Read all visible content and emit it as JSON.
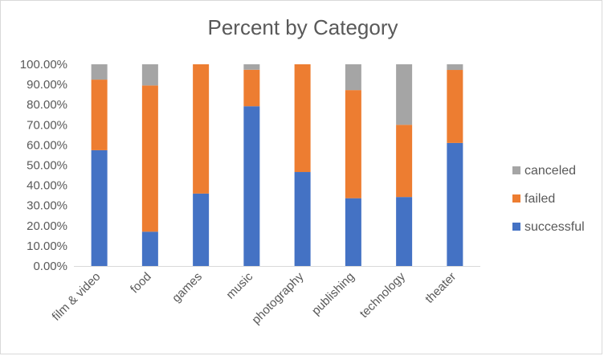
{
  "chart_data": {
    "type": "bar",
    "stacked": true,
    "title": "Percent by Category",
    "xlabel": "",
    "ylabel": "",
    "ylim": [
      0,
      100
    ],
    "y_ticks": [
      "0.00%",
      "10.00%",
      "20.00%",
      "30.00%",
      "40.00%",
      "50.00%",
      "60.00%",
      "70.00%",
      "80.00%",
      "90.00%",
      "100.00%"
    ],
    "categories": [
      "film & video",
      "food",
      "games",
      "music",
      "photography",
      "publishing",
      "technology",
      "theater"
    ],
    "series": [
      {
        "name": "successful",
        "color": "#4472c4",
        "values": [
          57.4,
          17.0,
          35.9,
          79.2,
          46.6,
          33.6,
          34.2,
          61.0
        ]
      },
      {
        "name": "failed",
        "color": "#ed7d31",
        "values": [
          35.0,
          72.5,
          64.1,
          18.1,
          53.4,
          53.6,
          35.8,
          36.2
        ]
      },
      {
        "name": "canceled",
        "color": "#a5a5a5",
        "values": [
          7.6,
          10.5,
          0.0,
          2.7,
          0.0,
          12.8,
          30.0,
          2.8
        ]
      }
    ],
    "legend": {
      "position": "right",
      "order": [
        "canceled",
        "failed",
        "successful"
      ]
    },
    "grid": false
  }
}
